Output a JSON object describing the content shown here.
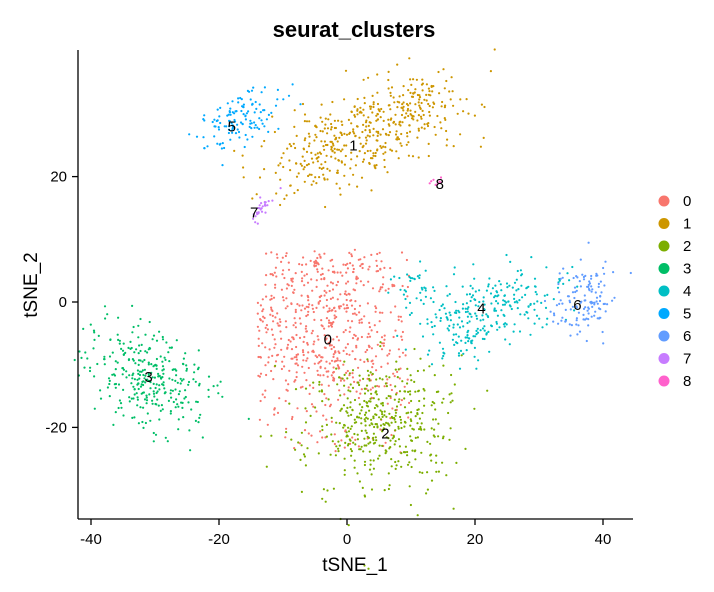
{
  "chart_data": {
    "type": "scatter",
    "title": "seurat_clusters",
    "xlabel": "tSNE_1",
    "ylabel": "tSNE_2",
    "xlim": [
      -43.5,
      44
    ],
    "ylim": [
      -35,
      40
    ],
    "xticks": [
      "-40",
      "-20",
      "0",
      "20",
      "40"
    ],
    "xtick_values": [
      -40,
      -20,
      0,
      20,
      40
    ],
    "yticks": [
      "-20",
      "0",
      "20"
    ],
    "ytick_values": [
      -20,
      0,
      20
    ],
    "grid": false,
    "legend_position": "right",
    "series": [
      {
        "name": "0",
        "color": "#F8766D",
        "label_x": -3,
        "label_y": -6,
        "blobs": [
          {
            "cx": -4,
            "cy": -5,
            "sx": 9,
            "sy": 9,
            "angle": 0,
            "n": 620,
            "xmin": -14,
            "xmax": 10,
            "ymin": -24,
            "ymax": 8
          },
          {
            "cx": 0,
            "cy": 5,
            "sx": 3,
            "sy": 2,
            "angle": 0,
            "n": 40
          }
        ]
      },
      {
        "name": "1",
        "color": "#CD9600",
        "label_x": 1,
        "label_y": 25,
        "blobs": [
          {
            "cx": 2,
            "cy": 27,
            "sx": 8,
            "sy": 3.5,
            "angle": 25,
            "n": 430
          },
          {
            "cx": 10,
            "cy": 32,
            "sx": 3,
            "sy": 2.5,
            "angle": 0,
            "n": 60
          }
        ]
      },
      {
        "name": "2",
        "color": "#7CAE00",
        "label_x": 6,
        "label_y": -21,
        "blobs": [
          {
            "cx": 5,
            "cy": -20,
            "sx": 6,
            "sy": 5.5,
            "angle": 0,
            "n": 380,
            "ymax": -9
          },
          {
            "cx": 8,
            "cy": -14,
            "sx": 4,
            "sy": 3,
            "angle": 0,
            "n": 60
          }
        ]
      },
      {
        "name": "3",
        "color": "#00BE67",
        "label_x": -31,
        "label_y": -12,
        "blobs": [
          {
            "cx": -31,
            "cy": -12,
            "sx": 5,
            "sy": 3.5,
            "angle": -35,
            "n": 320
          }
        ]
      },
      {
        "name": "4",
        "color": "#00BFC4",
        "label_x": 21,
        "label_y": -1,
        "blobs": [
          {
            "cx": 19,
            "cy": -3,
            "sx": 4.5,
            "sy": 3,
            "angle": 15,
            "n": 190
          },
          {
            "cx": 28,
            "cy": 1,
            "sx": 4,
            "sy": 2.5,
            "angle": 0,
            "n": 90
          },
          {
            "cx": 10,
            "cy": 3,
            "sx": 2,
            "sy": 1.3,
            "angle": 0,
            "n": 30
          }
        ]
      },
      {
        "name": "5",
        "color": "#00A9FF",
        "label_x": -18,
        "label_y": 28,
        "blobs": [
          {
            "cx": -17,
            "cy": 29,
            "sx": 3.5,
            "sy": 2,
            "angle": 30,
            "n": 130
          }
        ]
      },
      {
        "name": "6",
        "color": "#619CFF",
        "label_x": 36,
        "label_y": -0.5,
        "blobs": [
          {
            "cx": 37,
            "cy": 0,
            "sx": 2.5,
            "sy": 2.5,
            "angle": 0,
            "n": 130
          }
        ]
      },
      {
        "name": "7",
        "color": "#C77CFF",
        "label_x": -14.5,
        "label_y": 14.3,
        "blobs": [
          {
            "cx": -13.5,
            "cy": 15,
            "sx": 1.3,
            "sy": 0.4,
            "angle": 55,
            "n": 28
          }
        ]
      },
      {
        "name": "8",
        "color": "#FF61CC",
        "label_x": 14.5,
        "label_y": 18.8,
        "blobs": [
          {
            "cx": 13.8,
            "cy": 19.2,
            "sx": 0.5,
            "sy": 0.35,
            "angle": 0,
            "n": 8
          }
        ]
      }
    ]
  }
}
